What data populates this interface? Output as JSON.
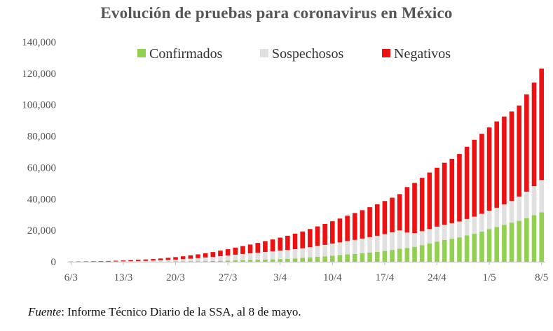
{
  "chart_data": {
    "type": "bar",
    "stacked": true,
    "title": "Evolución de pruebas para coronavirus en México",
    "xlabel": "",
    "ylabel": "",
    "ylim": [
      0,
      140000
    ],
    "yticks": [
      0,
      20000,
      40000,
      60000,
      80000,
      100000,
      120000,
      140000
    ],
    "ytick_labels": [
      "0",
      "20,000",
      "40,000",
      "60,000",
      "80,000",
      "100,000",
      "120,000",
      "140,000"
    ],
    "xtick_labels": [
      "6/3",
      "13/3",
      "20/3",
      "27/3",
      "3/4",
      "10/4",
      "17/4",
      "24/4",
      "1/5",
      "8/5"
    ],
    "xtick_positions": [
      0,
      7,
      14,
      21,
      28,
      35,
      42,
      49,
      56,
      63
    ],
    "grid": false,
    "legend_position": "top",
    "categories": [
      "6/3",
      "7/3",
      "8/3",
      "9/3",
      "10/3",
      "11/3",
      "12/3",
      "13/3",
      "14/3",
      "15/3",
      "16/3",
      "17/3",
      "18/3",
      "19/3",
      "20/3",
      "21/3",
      "22/3",
      "23/3",
      "24/3",
      "25/3",
      "26/3",
      "27/3",
      "28/3",
      "29/3",
      "30/3",
      "31/3",
      "1/4",
      "2/4",
      "3/4",
      "4/4",
      "5/4",
      "6/4",
      "7/4",
      "8/4",
      "9/4",
      "10/4",
      "11/4",
      "12/4",
      "13/4",
      "14/4",
      "15/4",
      "16/4",
      "17/4",
      "18/4",
      "19/4",
      "20/4",
      "21/4",
      "22/4",
      "23/4",
      "24/4",
      "25/4",
      "26/4",
      "27/4",
      "28/4",
      "29/4",
      "30/4",
      "1/5",
      "2/5",
      "3/5",
      "4/5",
      "5/5",
      "6/5",
      "7/5",
      "8/5"
    ],
    "series": [
      {
        "name": "Confirmados",
        "color": "#92d050",
        "values": [
          5,
          7,
          7,
          7,
          8,
          12,
          15,
          26,
          41,
          53,
          82,
          93,
          118,
          164,
          203,
          251,
          316,
          367,
          405,
          475,
          585,
          717,
          848,
          993,
          1094,
          1215,
          1378,
          1510,
          1688,
          1890,
          2143,
          2439,
          2785,
          3181,
          3441,
          3844,
          4219,
          4661,
          5014,
          5399,
          5847,
          6297,
          6875,
          7497,
          8261,
          8772,
          9501,
          10544,
          11633,
          12872,
          13842,
          14677,
          15529,
          16752,
          17799,
          19224,
          20739,
          22088,
          23471,
          24905,
          26025,
          27634,
          29616,
          31522
        ]
      },
      {
        "name": "Sospechosos",
        "color": "#e0e0e0",
        "values": [
          30,
          40,
          50,
          60,
          80,
          120,
          160,
          220,
          300,
          390,
          480,
          620,
          760,
          950,
          1150,
          1400,
          1660,
          1950,
          2280,
          2600,
          2950,
          3300,
          3650,
          3950,
          4250,
          4550,
          4850,
          5100,
          5350,
          5600,
          5850,
          6150,
          6500,
          6900,
          7300,
          7700,
          8100,
          8500,
          8900,
          9350,
          9800,
          10250,
          10700,
          11200,
          11700,
          9800,
          8700,
          8900,
          9200,
          9500,
          9700,
          9900,
          10100,
          10500,
          10900,
          11300,
          11800,
          12300,
          13000,
          13800,
          15500,
          17000,
          18500,
          20500
        ]
      },
      {
        "name": "Negativos",
        "color": "#ee1111",
        "values": [
          100,
          150,
          200,
          260,
          320,
          390,
          470,
          560,
          660,
          770,
          890,
          1030,
          1190,
          1370,
          1580,
          1820,
          2090,
          2390,
          2730,
          3100,
          3520,
          3980,
          4480,
          5020,
          5600,
          6220,
          6880,
          7580,
          8310,
          9080,
          9880,
          10700,
          11550,
          12430,
          13330,
          14250,
          15190,
          16140,
          17110,
          18090,
          19080,
          20080,
          21090,
          22100,
          23120,
          29000,
          32000,
          34000,
          36000,
          37500,
          39500,
          41000,
          43000,
          46000,
          49000,
          51000,
          53000,
          55000,
          56000,
          57000,
          58000,
          62000,
          66000,
          71000
        ]
      }
    ]
  },
  "footer": {
    "source_label": "Fuente",
    "source_text": ": Informe Técnico Diario de la SSA, al 8 de mayo."
  }
}
